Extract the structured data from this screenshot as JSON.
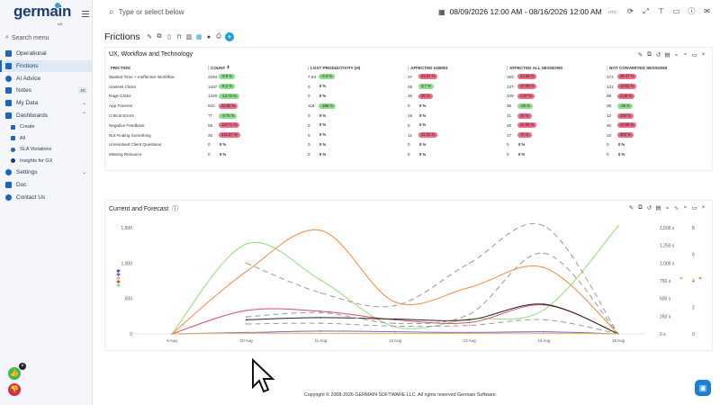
{
  "app": {
    "logo_text": "germain",
    "logo_sub": "UX"
  },
  "sidebar": {
    "search_label": "Search menu",
    "items": [
      {
        "label": "Operational",
        "icon": "grid-icon",
        "color": "#1b64c8"
      },
      {
        "label": "Frictions",
        "icon": "friction-icon",
        "color": "#1b64c8",
        "active": true
      },
      {
        "label": "AI Advice",
        "icon": "ai-icon",
        "color": "#1b64c8"
      },
      {
        "label": "Notes",
        "icon": "note-icon",
        "color": "#1b64c8",
        "badge": "4C"
      },
      {
        "label": "My Data",
        "icon": "data-icon",
        "color": "#1b64c8",
        "chevron": true
      },
      {
        "label": "Dashboards",
        "icon": "dashboard-icon",
        "color": "#1b64c8",
        "chevron": true
      }
    ],
    "dashboard_sub": [
      {
        "label": "Create",
        "icon": "create-icon"
      },
      {
        "label": "All",
        "icon": "list-icon"
      },
      {
        "label": "SLA Violations",
        "icon": "sla-icon"
      },
      {
        "label": "Insights for GX",
        "icon": "insights-icon"
      }
    ],
    "items_bottom": [
      {
        "label": "Settings",
        "icon": "gear-icon",
        "chevron": true
      },
      {
        "label": "Doc",
        "icon": "doc-icon"
      },
      {
        "label": "Contact Us",
        "icon": "contact-icon"
      }
    ]
  },
  "topbar": {
    "search_placeholder": "Type or select below",
    "date_range": "08/09/2026 12:00 AM - 08/16/2026 12:00 AM",
    "tz": "UTC"
  },
  "page": {
    "title": "Frictions"
  },
  "table_panel": {
    "title": "UX, Workflow and Technology",
    "columns": [
      "FRICTION",
      "COUNT",
      "LOST PRODUCTIVITY (H)",
      "AFFECTED USERS",
      "AFFECTED ALL SESSIONS",
      "NOT CONVERTED SESSIONS"
    ],
    "rows": [
      {
        "name": "Wasted Time + Ineffective Workflow",
        "cells": [
          [
            "2294",
            "-9.6 %",
            "green"
          ],
          [
            "7.54",
            "-6.3 %",
            "green"
          ],
          [
            "27",
            "28.57 %",
            "red"
          ],
          [
            "183",
            "23.65 %",
            "red"
          ],
          [
            "172",
            "26.47 %",
            "red"
          ]
        ]
      },
      {
        "name": "Useless Clicks",
        "cells": [
          [
            "1437",
            "-6.2 %",
            "green"
          ],
          [
            "0",
            "0 %",
            "none"
          ],
          [
            "26",
            "3.7 %",
            "green"
          ],
          [
            "137",
            "17.09 %",
            "red"
          ],
          [
            "131",
            "19.81 %",
            "red"
          ]
        ]
      },
      {
        "name": "Rage Clicks",
        "cells": [
          [
            "1420",
            "-13.73 %",
            "green"
          ],
          [
            "0",
            "0 %",
            "none"
          ],
          [
            "30",
            "25 %",
            "red"
          ],
          [
            "109",
            "1.87 %",
            "red"
          ],
          [
            "98",
            "2.08 %",
            "red"
          ]
        ]
      },
      {
        "name": "App Freezes",
        "cells": [
          [
            "542",
            "18.85 %",
            "red"
          ],
          [
            "118",
            "-256 %",
            "green"
          ],
          [
            "0",
            "0 %",
            "none"
          ],
          [
            "36",
            "-20 %",
            "green"
          ],
          [
            "38",
            "-25 %",
            "green"
          ]
        ]
      },
      {
        "name": "Critical Errors",
        "cells": [
          [
            "77",
            "-3.75 %",
            "green"
          ],
          [
            "0",
            "0 %",
            "none"
          ],
          [
            "16",
            "0 %",
            "none"
          ],
          [
            "21",
            "40 %",
            "red"
          ],
          [
            "12",
            "200 %",
            "red"
          ]
        ]
      },
      {
        "name": "Negative Feedback",
        "cells": [
          [
            "59",
            "110.71 %",
            "red"
          ],
          [
            "0",
            "0 %",
            "none"
          ],
          [
            "0",
            "0 %",
            "none"
          ],
          [
            "30",
            "42.86 %",
            "red"
          ],
          [
            "30",
            "42.86 %",
            "red"
          ]
        ]
      },
      {
        "name": "Not Finding Something",
        "cells": [
          [
            "25",
            "316.67 %",
            "red"
          ],
          [
            "0",
            "0 %",
            "none"
          ],
          [
            "11",
            "22.22 %",
            "red"
          ],
          [
            "17",
            "70 %",
            "red"
          ],
          [
            "10",
            "900 %",
            "red"
          ]
        ]
      },
      {
        "name": "Unresolved Client Questions",
        "cells": [
          [
            "0",
            "0 %",
            "none"
          ],
          [
            "0",
            "0 %",
            "none"
          ],
          [
            "0",
            "0 %",
            "none"
          ],
          [
            "0",
            "0 %",
            "none"
          ],
          [
            "0",
            "0 %",
            "none"
          ]
        ]
      },
      {
        "name": "Missing Resource",
        "cells": [
          [
            "0",
            "0 %",
            "none"
          ],
          [
            "0",
            "0 %",
            "none"
          ],
          [
            "0",
            "0 %",
            "none"
          ],
          [
            "0",
            "0 %",
            "none"
          ],
          [
            "0",
            "0 %",
            "none"
          ]
        ]
      }
    ]
  },
  "chart_panel": {
    "title": "Current and Forecast"
  },
  "chart_data": {
    "type": "line",
    "title": "",
    "x": [
      "9 Aug",
      "10 Aug",
      "11 Aug",
      "12 Aug",
      "13 Aug",
      "14 Aug",
      "15 Aug"
    ],
    "y_left_ticks": [
      "0",
      "500",
      "1,000",
      "1,500"
    ],
    "y_left_range": [
      0,
      1500
    ],
    "y_mid_ticks": [
      "0 s",
      "250 s",
      "500 s",
      "750 s",
      "1,000 s",
      "1,250 s",
      "1,500 s"
    ],
    "y_mid_range": [
      0,
      1500
    ],
    "y_right_ticks": [
      "0",
      "2",
      "4",
      "6",
      "8"
    ],
    "y_right_range": [
      0,
      8
    ],
    "series": [
      {
        "axis": "right",
        "color": "#f58a3c",
        "dash": "",
        "values": [
          0,
          4.7,
          7.8,
          2.4,
          3.5,
          5,
          0
        ]
      },
      {
        "axis": "left",
        "color": "#8ce06f",
        "dash": "",
        "values": [
          0,
          1270,
          760,
          100,
          210,
          340,
          1760
        ]
      },
      {
        "axis": "left",
        "color": "#e2456a",
        "dash": "",
        "values": [
          0,
          330,
          320,
          200,
          160,
          410,
          0
        ]
      },
      {
        "axis": "left",
        "color": "#222222",
        "dash": "",
        "values": [
          null,
          200,
          230,
          210,
          200,
          420,
          0
        ]
      },
      {
        "axis": "left",
        "color": "#8a5ad4",
        "dash": "",
        "values": [
          0,
          20,
          40,
          30,
          20,
          30,
          0
        ]
      },
      {
        "axis": "left",
        "color": "#999999",
        "dash": "6,4",
        "values": [
          null,
          1000,
          580,
          400,
          1000,
          1760,
          0
        ]
      },
      {
        "axis": "left",
        "color": "#999999",
        "dash": "6,4",
        "values": [
          null,
          240,
          300,
          150,
          280,
          1140,
          0
        ]
      },
      {
        "axis": "left",
        "color": "#999999",
        "dash": "6,4",
        "values": [
          null,
          140,
          150,
          110,
          120,
          200,
          0
        ]
      },
      {
        "axis": "left",
        "color": "#d7c24a",
        "dash": "",
        "values": [
          0,
          10,
          8,
          6,
          8,
          10,
          0
        ]
      }
    ],
    "legend_colors": [
      "#5b4fa8",
      "#8a5ad4",
      "#d7c24a",
      "#e2456a",
      "#8ce06f"
    ],
    "grid": false
  },
  "footer": {
    "text": "Copyright © 2008-2026 GERMAIN SOFTWARE LLC. All rights reserved Germain Software."
  }
}
